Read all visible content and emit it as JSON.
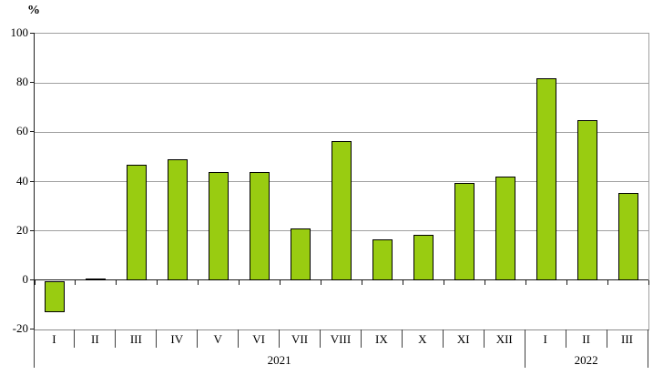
{
  "chart_data": {
    "type": "bar",
    "title": "",
    "ylabel": "%",
    "xlabel": "",
    "ymin": -20,
    "ymax": 100,
    "yticks": [
      100,
      80,
      60,
      40,
      20,
      0,
      -20
    ],
    "grid": true,
    "legend": false,
    "categories": [
      "I",
      "II",
      "III",
      "IV",
      "V",
      "VI",
      "VII",
      "VIII",
      "IX",
      "X",
      "XI",
      "XII",
      "I",
      "II",
      "III"
    ],
    "values": [
      -12.5,
      0.5,
      47,
      49,
      44,
      44,
      21,
      56.5,
      16.5,
      18.5,
      39.5,
      42,
      82,
      65,
      35.5
    ],
    "groups": [
      {
        "label": "2021",
        "start": 0,
        "span": 12
      },
      {
        "label": "2022",
        "start": 12,
        "span": 3
      }
    ],
    "colors": {
      "bar_fill": "#99CC11",
      "bar_border": "#000000",
      "gridline": "#A0A0A0",
      "axis": "#1A1A1A",
      "text": "#000000",
      "background": "#FFFFFF"
    }
  }
}
